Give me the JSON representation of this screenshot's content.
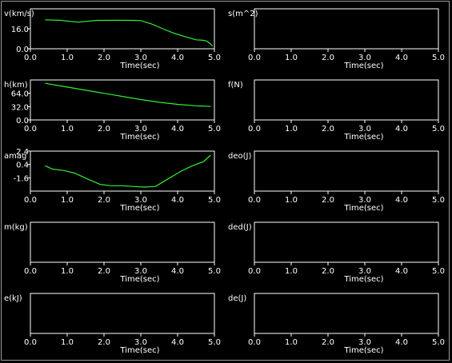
{
  "window": {
    "frame_color": "#9a9a9a",
    "background": "#000000"
  },
  "chart_data": [
    {
      "type": "line",
      "ylabel": "v(km/s)",
      "xlabel": "Time(sec)",
      "xticks": [
        "0.0",
        "1.0",
        "2.0",
        "3.0",
        "4.0",
        "5.0"
      ],
      "yticks": [
        "16.0",
        "0.0"
      ],
      "xlim": [
        0,
        5
      ],
      "ylim": [
        0,
        32
      ],
      "series": [
        {
          "color": "#33ee33",
          "x": [
            0.4,
            0.8,
            1.3,
            1.8,
            2.3,
            2.8,
            3.0,
            3.3,
            3.6,
            3.9,
            4.2,
            4.5,
            4.7,
            4.8,
            4.9,
            4.95
          ],
          "y": [
            23.2,
            22.8,
            21.3,
            22.7,
            22.8,
            22.7,
            22.5,
            19.8,
            16.0,
            12.5,
            9.7,
            7.2,
            6.8,
            6.0,
            3.8,
            2.0
          ]
        }
      ]
    },
    {
      "type": "line",
      "ylabel": "s(m^2)",
      "xlabel": "Time(sec)",
      "xticks": [
        "0.0",
        "1.0",
        "2.0",
        "3.0",
        "4.0",
        "5.0"
      ],
      "yticks": [],
      "xlim": [
        0,
        5
      ],
      "series": []
    },
    {
      "type": "line",
      "ylabel": "h(km)",
      "xlabel": "Time(sec)",
      "xticks": [
        "0.0",
        "1.0",
        "2.0",
        "3.0",
        "4.0",
        "5.0"
      ],
      "yticks": [
        "64.0",
        "32.0",
        "0.0"
      ],
      "xlim": [
        0,
        5
      ],
      "ylim": [
        0,
        96
      ],
      "series": [
        {
          "color": "#33ee33",
          "x": [
            0.4,
            1.0,
            2.0,
            3.0,
            3.5,
            4.0,
            4.5,
            4.9
          ],
          "y": [
            88.0,
            79.0,
            64.0,
            49.0,
            42.5,
            37.5,
            34.0,
            32.5
          ]
        }
      ]
    },
    {
      "type": "line",
      "ylabel": "f(N)",
      "xlabel": "Time(sec)",
      "xticks": [
        "0.0",
        "1.0",
        "2.0",
        "3.0",
        "4.0",
        "5.0"
      ],
      "yticks": [],
      "xlim": [
        0,
        5
      ],
      "series": []
    },
    {
      "type": "line",
      "ylabel": "amag",
      "xlabel": "Time(sec)",
      "xticks": [
        "0.0",
        "1.0",
        "2.0",
        "3.0",
        "4.0",
        "5.0"
      ],
      "yticks": [
        "-1.6",
        "0.4",
        "2.4"
      ],
      "xlim": [
        0,
        5
      ],
      "ylim": [
        -3.6,
        2.4
      ],
      "series": [
        {
          "color": "#33ee33",
          "x": [
            0.4,
            0.6,
            0.9,
            1.2,
            1.6,
            1.9,
            2.2,
            2.5,
            2.8,
            3.1,
            3.4,
            3.7,
            4.1,
            4.4,
            4.7,
            4.9
          ],
          "y": [
            0.2,
            -0.3,
            -0.5,
            -0.9,
            -1.9,
            -2.6,
            -2.8,
            -2.8,
            -2.9,
            -3.0,
            -2.9,
            -1.9,
            -0.6,
            0.2,
            0.8,
            1.8
          ]
        }
      ]
    },
    {
      "type": "line",
      "ylabel": "deo(J)",
      "xlabel": "Time(sec)",
      "xticks": [
        "0.0",
        "1.0",
        "2.0",
        "3.0",
        "4.0",
        "5.0"
      ],
      "yticks": [],
      "xlim": [
        0,
        5
      ],
      "series": []
    },
    {
      "type": "line",
      "ylabel": "m(kg)",
      "xlabel": "Time(sec)",
      "xticks": [
        "0.0",
        "1.0",
        "2.0",
        "3.0",
        "4.0",
        "5.0"
      ],
      "yticks": [],
      "xlim": [
        0,
        5
      ],
      "series": []
    },
    {
      "type": "line",
      "ylabel": "ded(J)",
      "xlabel": "Time(sec)",
      "xticks": [
        "0.0",
        "1.0",
        "2.0",
        "3.0",
        "4.0",
        "5.0"
      ],
      "yticks": [],
      "xlim": [
        0,
        5
      ],
      "series": []
    },
    {
      "type": "line",
      "ylabel": "e(kJ)",
      "xlabel": "Time(sec)",
      "xticks": [
        "0.0",
        "1.0",
        "2.0",
        "3.0",
        "4.0",
        "5.0"
      ],
      "yticks": [],
      "xlim": [
        0,
        5
      ],
      "series": []
    },
    {
      "type": "line",
      "ylabel": "de(J)",
      "xlabel": "Time(sec)",
      "xticks": [
        "0.0",
        "1.0",
        "2.0",
        "3.0",
        "4.0",
        "5.0"
      ],
      "yticks": [],
      "xlim": [
        0,
        5
      ],
      "series": []
    }
  ]
}
